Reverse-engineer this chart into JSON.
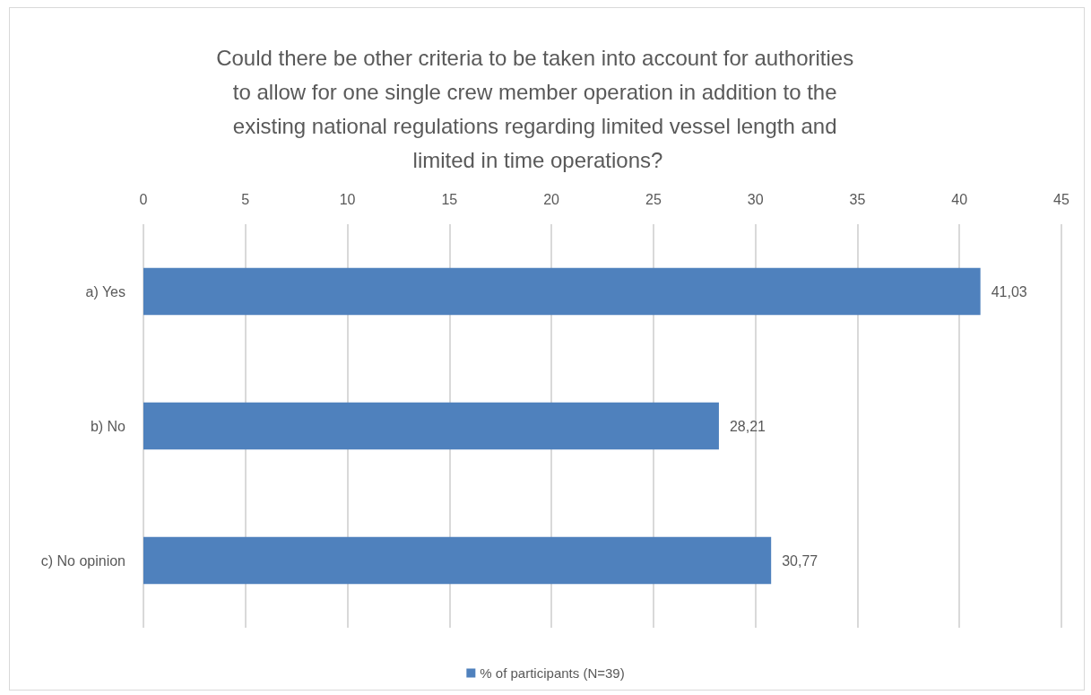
{
  "chart_data": {
    "type": "bar",
    "orientation": "horizontal",
    "title": "Could there be other criteria to be taken into account for authorities to allow for one single crew member operation in addition to the existing national regulations regarding limited vessel length and limited in time operations?",
    "categories": [
      "a) Yes",
      "b) No",
      "c) No opinion"
    ],
    "series": [
      {
        "name": "% of participants (N=39)",
        "color": "#4f81bd",
        "values": [
          41.03,
          28.21,
          30.77
        ],
        "value_labels": [
          "41,03",
          "28,21",
          "30,77"
        ]
      }
    ],
    "xlim": [
      0,
      45
    ],
    "xticks": [
      0,
      5,
      10,
      15,
      20,
      25,
      30,
      35,
      40,
      45
    ],
    "grid": "x",
    "legend": "bottom"
  }
}
